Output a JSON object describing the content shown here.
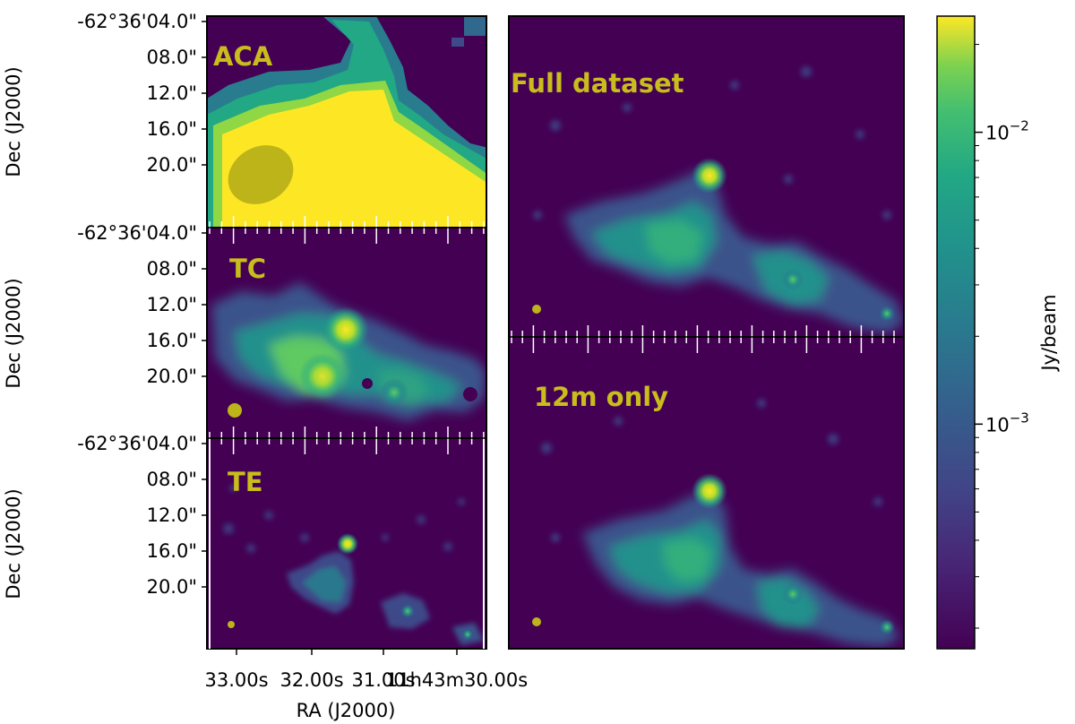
{
  "colors": {
    "background": "#440154",
    "beam": "#bdb41a",
    "label": "#c8bd1c",
    "ticks_on_image": "#ffffff",
    "frame": "#000000"
  },
  "chart_data": [
    {
      "type": "heatmap",
      "panel": "ACA",
      "label": "ACA",
      "ylabel": "Dec (J2000)",
      "y_ticks": [
        "-62°36'04.0\"",
        "08.0\"",
        "12.0\"",
        "16.0\"",
        "20.0\""
      ],
      "color_scale": "log",
      "beam_shape": "ellipse"
    },
    {
      "type": "heatmap",
      "panel": "TC",
      "label": "TC",
      "ylabel": "Dec (J2000)",
      "y_ticks": [
        "-62°36'04.0\"",
        "08.0\"",
        "12.0\"",
        "16.0\"",
        "20.0\""
      ],
      "color_scale": "log",
      "beam_shape": "ellipse"
    },
    {
      "type": "heatmap",
      "panel": "TE",
      "label": "TE",
      "ylabel": "Dec (J2000)",
      "xlabel": "RA (J2000)",
      "y_ticks": [
        "-62°36'04.0\"",
        "08.0\"",
        "12.0\"",
        "16.0\"",
        "20.0\""
      ],
      "x_ticks": [
        "33.00s",
        "32.00s",
        "31.00s",
        "11h43m30.00s"
      ],
      "color_scale": "log",
      "beam_shape": "dot"
    },
    {
      "type": "heatmap",
      "panel": "Full dataset",
      "label": "Full dataset",
      "color_scale": "log",
      "beam_shape": "dot"
    },
    {
      "type": "heatmap",
      "panel": "12m only",
      "label": "12m only",
      "color_scale": "log",
      "beam_shape": "dot"
    },
    {
      "type": "colorbar",
      "label": "Jy/beam",
      "scale": "log",
      "colormap": "viridis",
      "major_ticks": [
        {
          "value": 0.01,
          "base": "10",
          "exponent": "−2"
        },
        {
          "value": 0.001,
          "base": "10",
          "exponent": "−3"
        }
      ],
      "range": [
        0.00017,
        0.025
      ]
    }
  ]
}
